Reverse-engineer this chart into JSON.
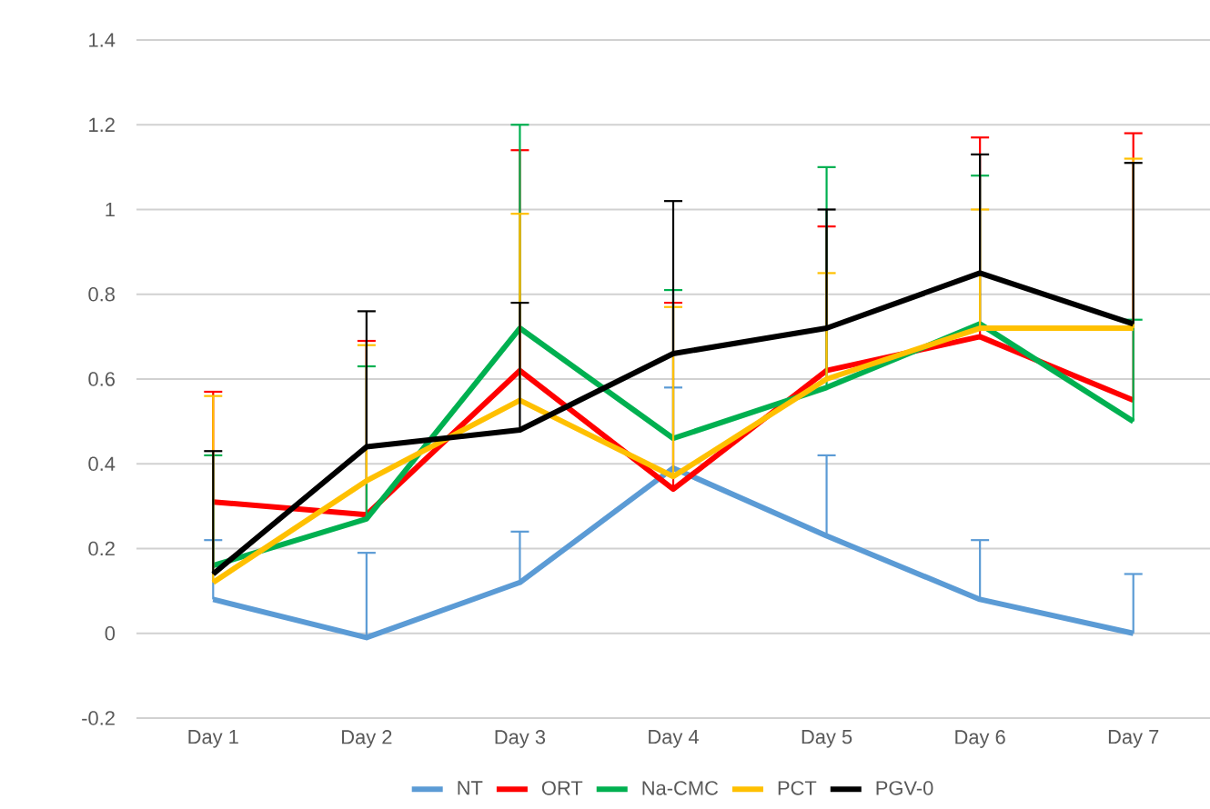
{
  "chart_data": {
    "type": "line",
    "categories": [
      "Day 1",
      "Day 2",
      "Day 3",
      "Day 4",
      "Day 5",
      "Day 6",
      "Day 7"
    ],
    "series": [
      {
        "name": "NT",
        "color": "#5b9bd5",
        "values": [
          0.08,
          -0.01,
          0.12,
          0.39,
          0.23,
          0.08,
          0.0
        ],
        "errors": [
          [
            0.08,
            0.22
          ],
          [
            -0.01,
            0.19
          ],
          [
            0.12,
            0.24
          ],
          [
            0.39,
            0.58
          ],
          [
            0.23,
            0.42
          ],
          [
            0.08,
            0.22
          ],
          [
            0.0,
            0.14
          ]
        ]
      },
      {
        "name": "ORT",
        "color": "#ff0000",
        "values": [
          0.31,
          0.28,
          0.62,
          0.34,
          0.62,
          0.7,
          0.55
        ],
        "errors": [
          [
            0.31,
            0.57
          ],
          [
            0.28,
            0.69
          ],
          [
            0.62,
            1.14
          ],
          [
            0.34,
            0.78
          ],
          [
            0.62,
            0.96
          ],
          [
            0.7,
            1.17
          ],
          [
            0.55,
            1.18
          ]
        ]
      },
      {
        "name": "Na-CMC",
        "color": "#00b050",
        "values": [
          0.16,
          0.27,
          0.72,
          0.46,
          0.58,
          0.73,
          0.5
        ],
        "errors": [
          [
            0.16,
            0.42
          ],
          [
            0.27,
            0.63
          ],
          [
            0.72,
            1.2
          ],
          [
            0.46,
            0.81
          ],
          [
            0.58,
            1.1
          ],
          [
            0.73,
            1.08
          ],
          [
            0.5,
            0.74
          ]
        ]
      },
      {
        "name": "PCT",
        "color": "#ffc000",
        "values": [
          0.12,
          0.36,
          0.55,
          0.37,
          0.6,
          0.72,
          0.72
        ],
        "errors": [
          [
            0.12,
            0.56
          ],
          [
            0.36,
            0.68
          ],
          [
            0.55,
            0.99
          ],
          [
            0.37,
            0.77
          ],
          [
            0.6,
            0.85
          ],
          [
            0.72,
            1.0
          ],
          [
            0.72,
            1.12
          ]
        ]
      },
      {
        "name": "PGV-0",
        "color": "#000000",
        "values": [
          0.14,
          0.44,
          0.48,
          0.66,
          0.72,
          0.85,
          0.73
        ],
        "errors": [
          [
            0.14,
            0.43
          ],
          [
            0.44,
            0.76
          ],
          [
            0.48,
            0.78
          ],
          [
            0.66,
            1.02
          ],
          [
            0.72,
            1.0
          ],
          [
            0.85,
            1.13
          ],
          [
            0.73,
            1.11
          ]
        ]
      }
    ],
    "ylim": [
      -0.2,
      1.4
    ],
    "yticks": [
      -0.2,
      0,
      0.2,
      0.4,
      0.6,
      0.8,
      1,
      1.2,
      1.4
    ],
    "grid": "y",
    "legend": "bottom",
    "marker": "none",
    "line_style": "solid"
  }
}
